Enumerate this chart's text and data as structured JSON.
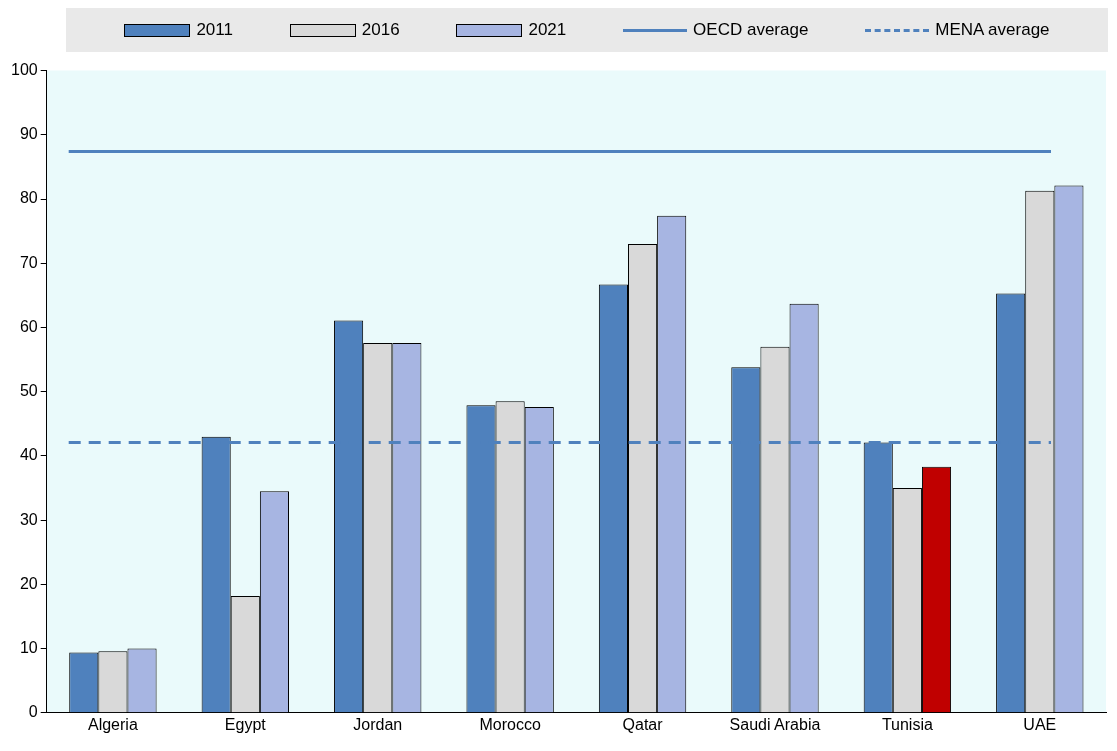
{
  "chart_data": {
    "type": "bar",
    "categories": [
      "Algeria",
      "Egypt",
      "Jordan",
      "Morocco",
      "Qatar",
      "Saudi Arabia",
      "Tunisia",
      "UAE"
    ],
    "series": [
      {
        "name": "2011",
        "color": "#4f81bd",
        "values": [
          9.4,
          43.0,
          61.1,
          47.9,
          66.7,
          53.8,
          42.1,
          65.3
        ]
      },
      {
        "name": "2016",
        "color": "#d9d9d9",
        "values": [
          9.6,
          18.2,
          57.6,
          48.5,
          73.0,
          57.0,
          35.0,
          81.3
        ]
      },
      {
        "name": "2021",
        "color": "#a7b5e2",
        "colors": [
          "#a7b5e2",
          "#a7b5e2",
          "#a7b5e2",
          "#a7b5e2",
          "#a7b5e2",
          "#a7b5e2",
          "#c00000",
          "#a7b5e2"
        ],
        "values": [
          10.0,
          34.5,
          57.6,
          47.6,
          77.4,
          63.7,
          38.3,
          82.1
        ]
      }
    ],
    "ref_lines": [
      {
        "axis": "y",
        "value": 87.4,
        "label": "OECD average",
        "color": "#4f81bd",
        "line_style": "solid"
      },
      {
        "axis": "y",
        "value": 42.1,
        "label": "MENA average",
        "color": "#4f81bd",
        "line_style": "dashed"
      }
    ],
    "ylim": [
      0,
      100
    ],
    "yticks": [
      0,
      10,
      20,
      30,
      40,
      50,
      60,
      70,
      80,
      90,
      100
    ],
    "grid": false,
    "legend": "top"
  }
}
